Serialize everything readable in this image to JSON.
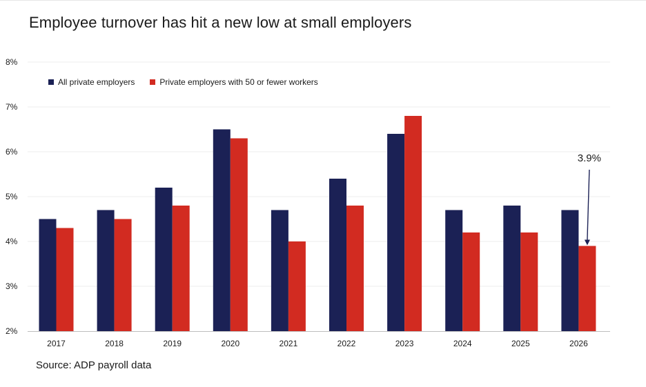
{
  "chart_data": {
    "type": "bar",
    "title": "Employee turnover has hit a new low at small employers",
    "categories": [
      "2017",
      "2018",
      "2019",
      "2020",
      "2021",
      "2022",
      "2023",
      "2024",
      "2025",
      "2026"
    ],
    "series": [
      {
        "name": "All private employers",
        "color": "#1b2155",
        "values": [
          4.5,
          4.7,
          5.2,
          6.5,
          4.7,
          5.4,
          6.4,
          4.7,
          4.8,
          4.7
        ]
      },
      {
        "name": "Private employers with 50 or fewer workers",
        "color": "#d22b21",
        "values": [
          4.3,
          4.5,
          4.8,
          6.3,
          4.0,
          4.8,
          6.8,
          4.2,
          4.2,
          3.9
        ]
      }
    ],
    "ylim": [
      2,
      8
    ],
    "yticks": [
      "2%",
      "3%",
      "4%",
      "5%",
      "6%",
      "7%",
      "8%"
    ],
    "ytick_values": [
      2,
      3,
      4,
      5,
      6,
      7,
      8
    ],
    "grid": true,
    "legend_position": "top-left",
    "annotation": {
      "text": "3.9%",
      "category": "2026",
      "series": 1,
      "value": 3.9
    },
    "source": "Source: ADP payroll data"
  }
}
